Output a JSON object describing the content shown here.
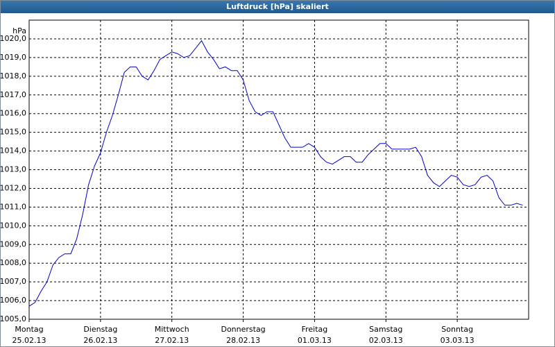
{
  "chart_data": {
    "type": "line",
    "title": "Luftdruck [hPa] skaliert",
    "y_label": "hPa",
    "x": [
      0,
      2,
      4,
      6,
      8,
      10,
      12,
      14,
      16,
      18,
      20,
      22,
      24,
      26,
      28,
      30,
      32,
      34,
      36,
      38,
      40,
      42,
      44,
      46,
      48,
      50,
      52,
      54,
      56,
      58,
      60,
      62,
      64,
      66,
      68,
      70,
      72,
      74,
      76,
      78,
      80,
      82,
      84,
      86,
      88,
      90,
      92,
      94,
      96,
      98,
      100,
      102,
      104,
      106,
      108,
      110,
      112,
      114,
      116,
      118,
      120,
      122,
      124,
      126,
      128,
      130,
      132,
      134,
      136,
      138,
      140,
      142,
      144,
      146,
      148,
      150,
      152,
      154,
      156,
      158,
      160,
      162,
      164,
      166
    ],
    "series": [
      {
        "name": "Luftdruck",
        "color": "#0000cc",
        "values": [
          1005.7,
          1005.9,
          1006.5,
          1007.0,
          1007.9,
          1008.3,
          1008.5,
          1008.5,
          1009.3,
          1010.6,
          1012.2,
          1013.2,
          1013.9,
          1015.0,
          1015.9,
          1017.0,
          1018.2,
          1018.5,
          1018.5,
          1018.0,
          1017.8,
          1018.3,
          1018.9,
          1019.1,
          1019.3,
          1019.2,
          1019.0,
          1019.1,
          1019.5,
          1019.9,
          1019.3,
          1018.9,
          1018.4,
          1018.5,
          1018.3,
          1018.3,
          1017.8,
          1016.7,
          1016.1,
          1015.9,
          1016.1,
          1016.1,
          1015.4,
          1014.7,
          1014.2,
          1014.2,
          1014.2,
          1014.4,
          1014.2,
          1013.7,
          1013.4,
          1013.3,
          1013.5,
          1013.7,
          1013.7,
          1013.4,
          1013.4,
          1013.8,
          1014.1,
          1014.4,
          1014.4,
          1014.1,
          1014.1,
          1014.1,
          1014.1,
          1014.2,
          1013.7,
          1012.7,
          1012.3,
          1012.1,
          1012.4,
          1012.7,
          1012.6,
          1012.2,
          1012.1,
          1012.2,
          1012.6,
          1012.7,
          1012.4,
          1011.5,
          1011.1,
          1011.1,
          1011.2,
          1011.1
        ]
      }
    ],
    "xlim": [
      0,
      168
    ],
    "xticks": [
      {
        "value": 0,
        "label": "Montag",
        "sublabel": "25.02.13"
      },
      {
        "value": 24,
        "label": "Dienstag",
        "sublabel": "26.02.13"
      },
      {
        "value": 48,
        "label": "Mittwoch",
        "sublabel": "27.02.13"
      },
      {
        "value": 72,
        "label": "Donnerstag",
        "sublabel": "28.02.13"
      },
      {
        "value": 96,
        "label": "Freitag",
        "sublabel": "01.03.13"
      },
      {
        "value": 120,
        "label": "Samstag",
        "sublabel": "02.03.13"
      },
      {
        "value": 144,
        "label": "Sonntag",
        "sublabel": "03.03.13"
      }
    ],
    "ylim": [
      1005,
      1021
    ],
    "yticks": [
      {
        "value": 1005,
        "label": "1005,0"
      },
      {
        "value": 1006,
        "label": "1006,0"
      },
      {
        "value": 1007,
        "label": "1007,0"
      },
      {
        "value": 1008,
        "label": "1008,0"
      },
      {
        "value": 1009,
        "label": "1009,0"
      },
      {
        "value": 1010,
        "label": "1010,0"
      },
      {
        "value": 1011,
        "label": "1011,0"
      },
      {
        "value": 1012,
        "label": "1012,0"
      },
      {
        "value": 1013,
        "label": "1013,0"
      },
      {
        "value": 1014,
        "label": "1014,0"
      },
      {
        "value": 1015,
        "label": "1015,0"
      },
      {
        "value": 1016,
        "label": "1016,0"
      },
      {
        "value": 1017,
        "label": "1017,0"
      },
      {
        "value": 1018,
        "label": "1018,0"
      },
      {
        "value": 1019,
        "label": "1019,0"
      },
      {
        "value": 1020,
        "label": "1020,0"
      }
    ],
    "grid": true
  }
}
